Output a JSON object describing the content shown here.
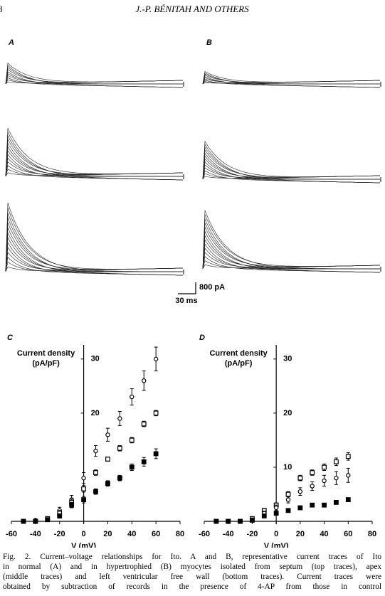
{
  "header": {
    "page_number": "8",
    "running_head": "J.-P. BÉNITAH AND OTHERS"
  },
  "traces": {
    "labels": [
      "A",
      "B"
    ],
    "scale_bar": {
      "current": "800 pA",
      "time": "30 ms"
    }
  },
  "chart_data": [
    {
      "type": "scatter",
      "title": "C",
      "y_label_lines": [
        "Current density",
        "(pA/pF)"
      ],
      "x_label": "V (mV)",
      "x": [
        -50,
        -40,
        -30,
        -20,
        -10,
        0,
        10,
        20,
        30,
        40,
        50,
        60
      ],
      "xlim": [
        -60,
        80
      ],
      "xticks": [
        -60,
        -40,
        -20,
        0,
        20,
        40,
        60,
        80
      ],
      "ylim": [
        0,
        32.6
      ],
      "yticks": [
        20,
        30
      ],
      "series": [
        {
          "marker": "circle",
          "color": "#000000",
          "values": [
            0,
            0.2,
            0.5,
            2,
            4,
            8,
            13,
            16,
            19,
            23,
            26,
            30
          ],
          "errors": [
            0.2,
            0.2,
            0.3,
            0.6,
            0.8,
            1,
            1,
            1.2,
            1.3,
            1.5,
            1.8,
            2.2
          ]
        },
        {
          "marker": "square",
          "color": "#000000",
          "values": [
            0,
            0,
            0.5,
            1.5,
            3.5,
            6,
            9,
            11.5,
            13.5,
            15,
            18,
            20
          ],
          "errors": [
            0.2,
            0.2,
            0.3,
            0.5,
            0.6,
            0.6,
            0.5,
            0.4,
            0.5,
            0.5,
            0.5,
            0.5
          ]
        },
        {
          "marker": "filled-square",
          "color": "#000000",
          "values": [
            0,
            0,
            0.3,
            1,
            3,
            4,
            5.5,
            7,
            8,
            10,
            11,
            12.5
          ],
          "errors": [
            0.2,
            0.2,
            0.2,
            0.4,
            0.5,
            0.6,
            0.5,
            0.5,
            0.5,
            0.6,
            0.8,
            0.9
          ]
        }
      ]
    },
    {
      "type": "scatter",
      "title": "D",
      "y_label_lines": [
        "Current density",
        "(pA/pF)"
      ],
      "x_label": "V (mV)",
      "x": [
        -50,
        -40,
        -30,
        -20,
        -10,
        0,
        10,
        20,
        30,
        40,
        50,
        60
      ],
      "xlim": [
        -60,
        80
      ],
      "xticks": [
        -60,
        -40,
        -20,
        0,
        20,
        40,
        60,
        80
      ],
      "ylim": [
        0,
        32.6
      ],
      "yticks": [
        10,
        20,
        30
      ],
      "series": [
        {
          "marker": "square",
          "color": "#000000",
          "values": [
            0,
            0,
            0,
            0.5,
            2,
            3,
            5,
            8,
            9,
            10,
            11,
            12
          ],
          "errors": [
            0.2,
            0.2,
            0.2,
            0.3,
            0.4,
            0.4,
            0.5,
            0.5,
            0.5,
            0.6,
            0.7,
            0.7
          ]
        },
        {
          "marker": "circle",
          "color": "#000000",
          "values": [
            0,
            0,
            0,
            0.3,
            1.5,
            2.5,
            4,
            5.5,
            6.5,
            7.5,
            8,
            8.5
          ],
          "errors": [
            0.2,
            0.2,
            0.2,
            0.3,
            0.4,
            0.5,
            0.6,
            0.7,
            0.8,
            1,
            1.2,
            1.3
          ]
        },
        {
          "marker": "filled-square",
          "color": "#000000",
          "values": [
            0,
            0,
            0,
            0.2,
            1,
            1.5,
            2,
            2.5,
            3,
            3,
            3.5,
            4
          ],
          "errors": [
            0.2,
            0.2,
            0.2,
            0.2,
            0.3,
            0.3,
            0.3,
            0.3,
            0.3,
            0.3,
            0.3,
            0.3
          ]
        }
      ]
    }
  ],
  "caption": {
    "lines": [
      "Fig. 2. Current–voltage relationships for Ito. A and B, representative current traces of Ito",
      "in normal (A) and in hypertrophied (B) myocytes isolated from septum (top traces), apex",
      "(middle traces) and left ventricular free wall (bottom traces). Current traces were",
      "obtained by subtraction of records in the presence of 4-AP from those in control"
    ]
  }
}
